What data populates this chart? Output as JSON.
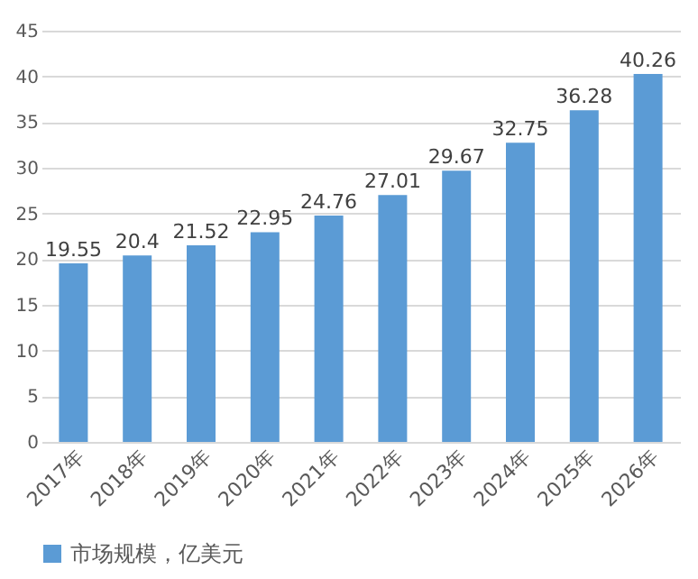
{
  "chart_data": {
    "type": "bar",
    "categories": [
      "2017年",
      "2018年",
      "2019年",
      "2020年",
      "2021年",
      "2022年",
      "2023年",
      "2024年",
      "2025年",
      "2026年"
    ],
    "series": [
      {
        "name": "市场规模，亿美元",
        "color": "#5b9bd5",
        "values": [
          19.55,
          20.4,
          21.52,
          22.95,
          24.76,
          27.01,
          29.67,
          32.75,
          36.28,
          40.26
        ]
      }
    ],
    "ylim": [
      0,
      45
    ],
    "yticks": [
      0,
      5,
      10,
      15,
      20,
      25,
      30,
      35,
      40,
      45
    ],
    "grid": "y",
    "legend": "bottom",
    "data_labels": true
  }
}
